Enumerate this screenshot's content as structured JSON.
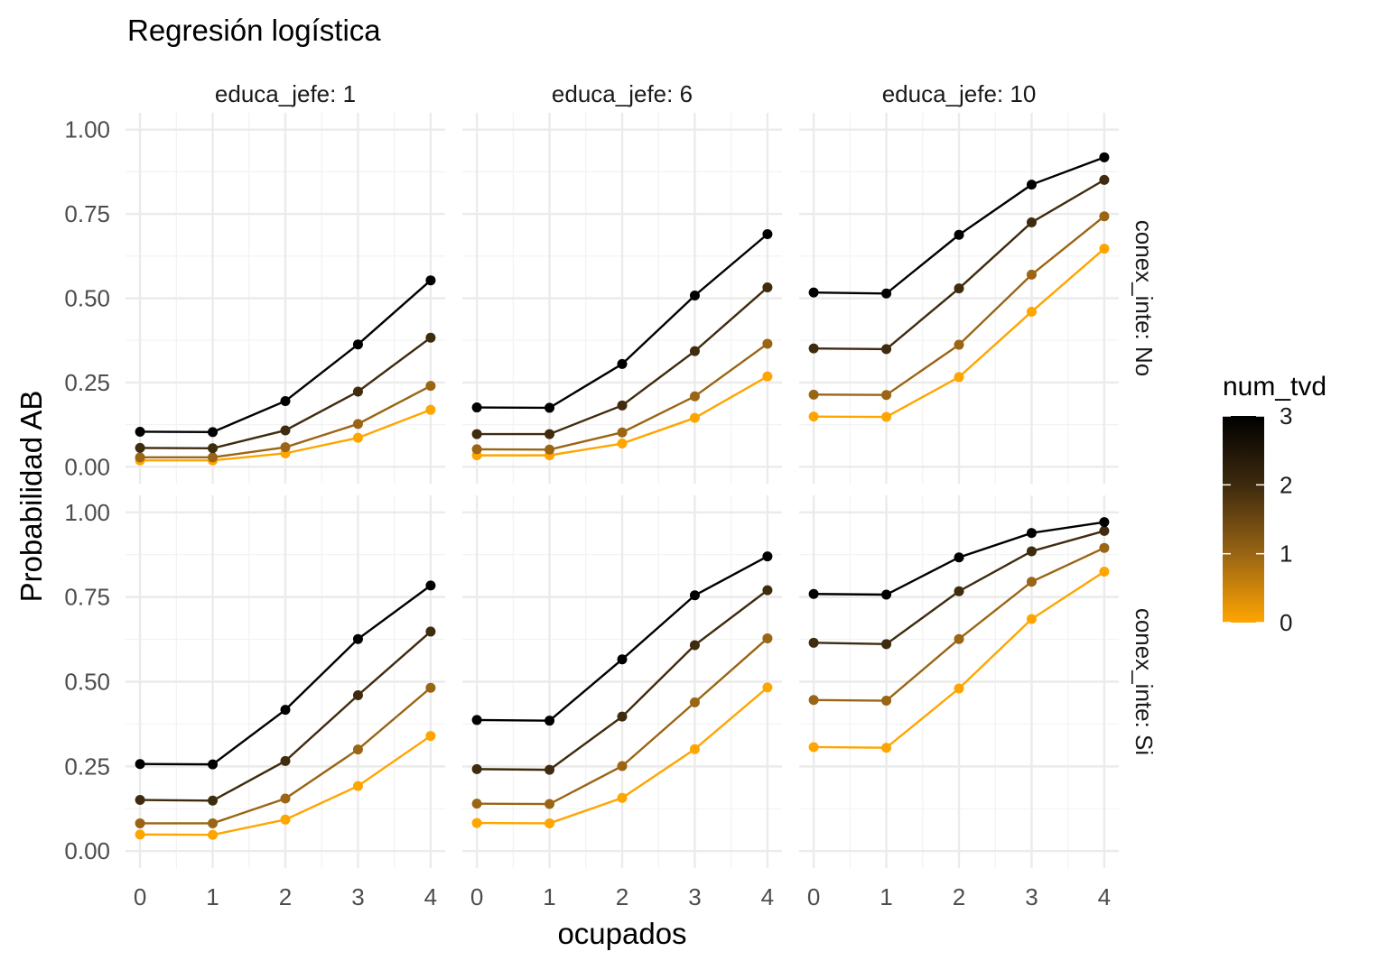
{
  "chart_data": {
    "type": "line",
    "title": "Regresión logística",
    "xlabel": "ocupados",
    "ylabel": "Probabilidad AB",
    "x": [
      0,
      1,
      2,
      3,
      4
    ],
    "x_ticks": [
      "0",
      "1",
      "2",
      "3",
      "4"
    ],
    "y_ticks": [
      "0.00",
      "0.25",
      "0.50",
      "0.75",
      "1.00"
    ],
    "ylim": [
      0,
      1
    ],
    "grid": true,
    "col_strips": [
      "educa_jefe: 1",
      "educa_jefe: 6",
      "educa_jefe: 10"
    ],
    "row_strips": [
      "conex_inte: No",
      "conex_inte: Si"
    ],
    "legend": {
      "title": "num_tvd",
      "placement": "right",
      "type": "colorbar",
      "ticks": [
        "0",
        "1",
        "2",
        "3"
      ],
      "color_low": "#FFA500",
      "color_high": "#000000"
    },
    "panels": [
      {
        "row": 0,
        "col": 0,
        "series": [
          {
            "num_tvd": 3,
            "color": "#000000",
            "values": [
              0.104,
              0.103,
              0.195,
              0.363,
              0.553
            ]
          },
          {
            "num_tvd": 2,
            "color": "#3F2B0E",
            "values": [
              0.056,
              0.055,
              0.108,
              0.223,
              0.383
            ]
          },
          {
            "num_tvd": 1,
            "color": "#9A6514",
            "values": [
              0.028,
              0.028,
              0.058,
              0.127,
              0.24
            ]
          },
          {
            "num_tvd": 0,
            "color": "#FFA500",
            "values": [
              0.019,
              0.019,
              0.04,
              0.086,
              0.169
            ]
          }
        ]
      },
      {
        "row": 0,
        "col": 1,
        "series": [
          {
            "num_tvd": 3,
            "color": "#000000",
            "values": [
              0.176,
              0.175,
              0.305,
              0.508,
              0.69
            ]
          },
          {
            "num_tvd": 2,
            "color": "#3F2B0E",
            "values": [
              0.097,
              0.097,
              0.182,
              0.343,
              0.532
            ]
          },
          {
            "num_tvd": 1,
            "color": "#9A6514",
            "values": [
              0.052,
              0.051,
              0.102,
              0.209,
              0.365
            ]
          },
          {
            "num_tvd": 0,
            "color": "#FFA500",
            "values": [
              0.034,
              0.034,
              0.069,
              0.145,
              0.268
            ]
          }
        ]
      },
      {
        "row": 0,
        "col": 2,
        "series": [
          {
            "num_tvd": 3,
            "color": "#000000",
            "values": [
              0.517,
              0.514,
              0.688,
              0.837,
              0.918
            ]
          },
          {
            "num_tvd": 2,
            "color": "#3F2B0E",
            "values": [
              0.351,
              0.349,
              0.529,
              0.725,
              0.851
            ]
          },
          {
            "num_tvd": 1,
            "color": "#9A6514",
            "values": [
              0.214,
              0.213,
              0.362,
              0.57,
              0.743
            ]
          },
          {
            "num_tvd": 0,
            "color": "#FFA500",
            "values": [
              0.149,
              0.148,
              0.266,
              0.46,
              0.647
            ]
          }
        ]
      },
      {
        "row": 1,
        "col": 0,
        "series": [
          {
            "num_tvd": 3,
            "color": "#000000",
            "values": [
              0.257,
              0.256,
              0.417,
              0.626,
              0.784
            ]
          },
          {
            "num_tvd": 2,
            "color": "#3F2B0E",
            "values": [
              0.151,
              0.149,
              0.266,
              0.46,
              0.648
            ]
          },
          {
            "num_tvd": 1,
            "color": "#9A6514",
            "values": [
              0.082,
              0.082,
              0.155,
              0.3,
              0.482
            ]
          },
          {
            "num_tvd": 0,
            "color": "#FFA500",
            "values": [
              0.049,
              0.048,
              0.093,
              0.192,
              0.34
            ]
          }
        ]
      },
      {
        "row": 1,
        "col": 1,
        "series": [
          {
            "num_tvd": 3,
            "color": "#000000",
            "values": [
              0.387,
              0.385,
              0.566,
              0.755,
              0.87
            ]
          },
          {
            "num_tvd": 2,
            "color": "#3F2B0E",
            "values": [
              0.242,
              0.24,
              0.397,
              0.608,
              0.77
            ]
          },
          {
            "num_tvd": 1,
            "color": "#9A6514",
            "values": [
              0.14,
              0.139,
              0.251,
              0.439,
              0.628
            ]
          },
          {
            "num_tvd": 0,
            "color": "#FFA500",
            "values": [
              0.083,
              0.082,
              0.157,
              0.301,
              0.483
            ]
          }
        ]
      },
      {
        "row": 1,
        "col": 2,
        "series": [
          {
            "num_tvd": 3,
            "color": "#000000",
            "values": [
              0.759,
              0.757,
              0.867,
              0.939,
              0.971
            ]
          },
          {
            "num_tvd": 2,
            "color": "#3F2B0E",
            "values": [
              0.615,
              0.611,
              0.767,
              0.885,
              0.945
            ]
          },
          {
            "num_tvd": 1,
            "color": "#9A6514",
            "values": [
              0.446,
              0.444,
              0.626,
              0.795,
              0.895
            ]
          },
          {
            "num_tvd": 0,
            "color": "#FFA500",
            "values": [
              0.307,
              0.305,
              0.48,
              0.685,
              0.825
            ]
          }
        ]
      }
    ]
  }
}
